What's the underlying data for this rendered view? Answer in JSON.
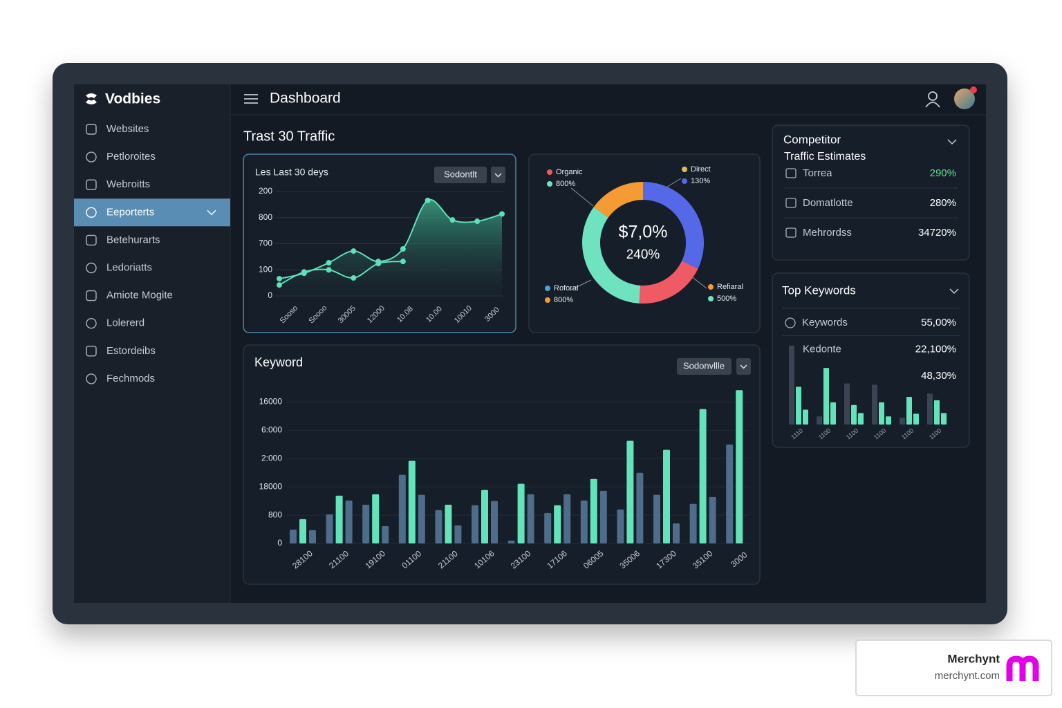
{
  "sidebar": {
    "brand": "Vodbies",
    "active": 3,
    "nav": [
      "Websites",
      "Petloroites",
      "Webroitts",
      "Eeporterts",
      "Betehurarts",
      "Ledoriatts",
      "Amiote Mogite",
      "Lolererd",
      "Estordeibs",
      "Fechmods"
    ]
  },
  "header": {
    "title": "Dashboard"
  },
  "traffic": {
    "heading": "Trast 30 Traffic",
    "line_chart": {
      "type": "line",
      "title": "Les Last 30 deys",
      "dropdown": "Sodontlt",
      "x_labels": [
        "Sooso",
        "Soooo",
        "30005",
        "12000",
        "10.08",
        "10.00",
        "10010",
        "3000"
      ],
      "series": [
        {
          "color": "#5fe0b8",
          "area": true,
          "values": [
            0.66,
            0.87,
            1.27,
            1.72,
            1.32,
            1.8,
            3.66,
            2.91,
            2.86,
            3.14
          ]
        },
        {
          "color": "#5fe0b8",
          "area": false,
          "values": [
            0.42,
            0.92,
            1.0,
            0.69,
            1.24,
            1.32,
            null,
            null,
            null,
            null
          ]
        }
      ],
      "ylim": [
        0,
        4
      ],
      "yticks": [
        {
          "value": 4,
          "label": "200"
        },
        {
          "value": 3,
          "label": "800"
        },
        {
          "value": 2,
          "label": "700"
        },
        {
          "value": 1,
          "label": "100"
        },
        0
      ],
      "grid": true
    },
    "donut": {
      "type": "pie",
      "center_value": "$7,0%",
      "center_sub": "240%",
      "segments": [
        {
          "color": "#5468e8",
          "value": 32
        },
        {
          "color": "#ef5a64",
          "value": 19
        },
        {
          "color": "#6fe3c0",
          "value": 34
        },
        {
          "color": "#f49b33",
          "value": 15
        }
      ],
      "legend": [
        {
          "label": "Organic",
          "label_color": "#ef5a64",
          "value": "800%",
          "value_color": "#6fe3c0"
        },
        {
          "label": "Direct",
          "label_color": "#d8c04a",
          "value": "130%",
          "value_color": "#5468e8"
        },
        {
          "label": "Roforal",
          "label_color": "#4aa3e0",
          "value": "800%",
          "value_color": "#f49b33"
        },
        {
          "label": "Refiaral",
          "label_color": "#f49b33",
          "value": "500%",
          "value_color": "#6fe3c0"
        }
      ]
    }
  },
  "keyword_chart": {
    "type": "bar",
    "title": "Keyword",
    "dropdown": "Sodonvllle",
    "categories": [
      "28100",
      "21100",
      "19100",
      "01100",
      "21100",
      "10106",
      "23100",
      "17106",
      "06005",
      "35006",
      "17300",
      "35100",
      "3000"
    ],
    "series": [
      {
        "color": "#4d6d8a",
        "values": [
          0.49,
          1.03,
          1.37,
          2.43,
          1.18,
          1.35,
          0.1,
          1.08,
          1.52,
          1.2,
          1.72,
          1.4,
          3.5
        ]
      },
      {
        "color": "#62e3b9",
        "values": [
          0.86,
          1.69,
          1.74,
          2.92,
          1.37,
          1.89,
          2.11,
          1.35,
          2.28,
          3.63,
          3.31,
          4.75,
          5.42
        ]
      },
      {
        "color": "#4d6d8a",
        "values": [
          0.47,
          1.52,
          0.61,
          1.72,
          0.64,
          1.5,
          1.74,
          1.74,
          1.86,
          2.5,
          0.71,
          1.64,
          null
        ]
      }
    ],
    "ylim": [
      0,
      5.5
    ],
    "yticks": [
      {
        "value": 5,
        "label": "16000"
      },
      {
        "value": 4,
        "label": "6:000"
      },
      {
        "value": 3,
        "label": "2:000"
      },
      {
        "value": 2,
        "label": "18000"
      },
      {
        "value": 1,
        "label": "800"
      },
      0
    ],
    "grid": true
  },
  "competitor": {
    "title": "Competitor",
    "subtitle": "Traffic Estimates",
    "rows": [
      {
        "label": "Torrea",
        "value": "290%",
        "value_color": "#5fe08a"
      },
      {
        "label": "Domatlotte",
        "value": "280%",
        "value_color": "#ffffff"
      },
      {
        "label": "Mehrordss",
        "value": "34720%",
        "value_color": "#ffffff"
      }
    ]
  },
  "top_keywords": {
    "title": "Top Keywords",
    "rows": [
      {
        "label": "Keywords",
        "value": "55,00%"
      },
      {
        "label": "Kedonte",
        "value": "22,100%"
      },
      {
        "value": "48,30%"
      }
    ],
    "mini_chart": {
      "type": "bar",
      "categories": [
        "1110",
        "1100",
        "1100",
        "1100",
        "1100",
        "1100"
      ],
      "series": [
        {
          "color": "#3a4452",
          "values": [
            117,
            12,
            61,
            59,
            10,
            46
          ]
        },
        {
          "color": "#62e3b9",
          "values": [
            56,
            84,
            29,
            33,
            41,
            36
          ]
        },
        {
          "color": "#62e3b9",
          "values": [
            22,
            33,
            17,
            12,
            16,
            17
          ]
        }
      ],
      "ylim": [
        0,
        120
      ]
    }
  },
  "watermark": {
    "name": "Merchynt",
    "url": "merchynt.com"
  }
}
